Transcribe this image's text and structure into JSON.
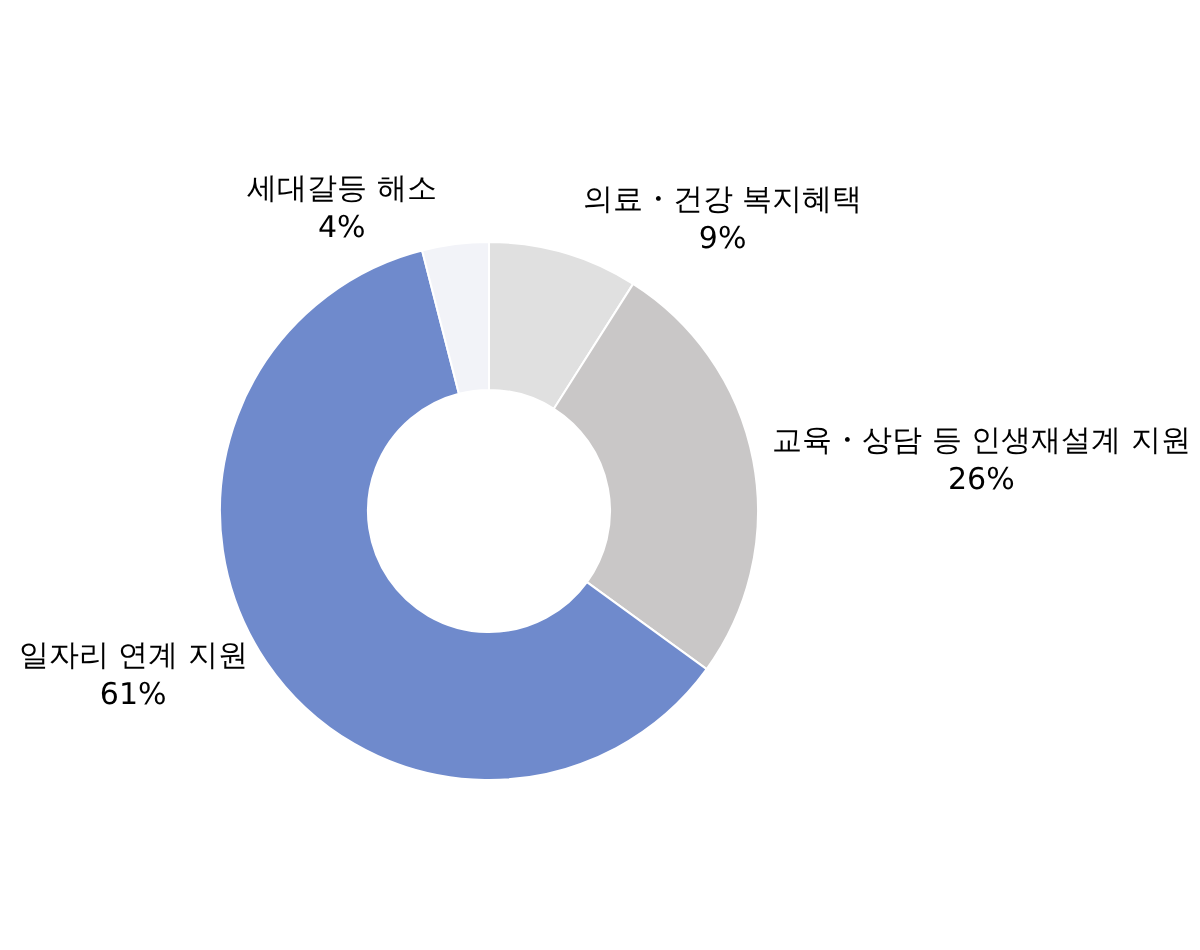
{
  "chart_data": {
    "type": "donut",
    "categories": [
      "의료・건강 복지혜택",
      "교육・상담 등 인생재설계 지원",
      "일자리 연계 지원",
      "세대갈등 해소"
    ],
    "values": [
      9,
      26,
      61,
      4
    ],
    "value_labels": [
      "9%",
      "26%",
      "61%",
      "4%"
    ],
    "colors": [
      "#e0e0e0",
      "#c9c7c7",
      "#6f8acc",
      "#f2f3f8"
    ],
    "legend": false
  }
}
